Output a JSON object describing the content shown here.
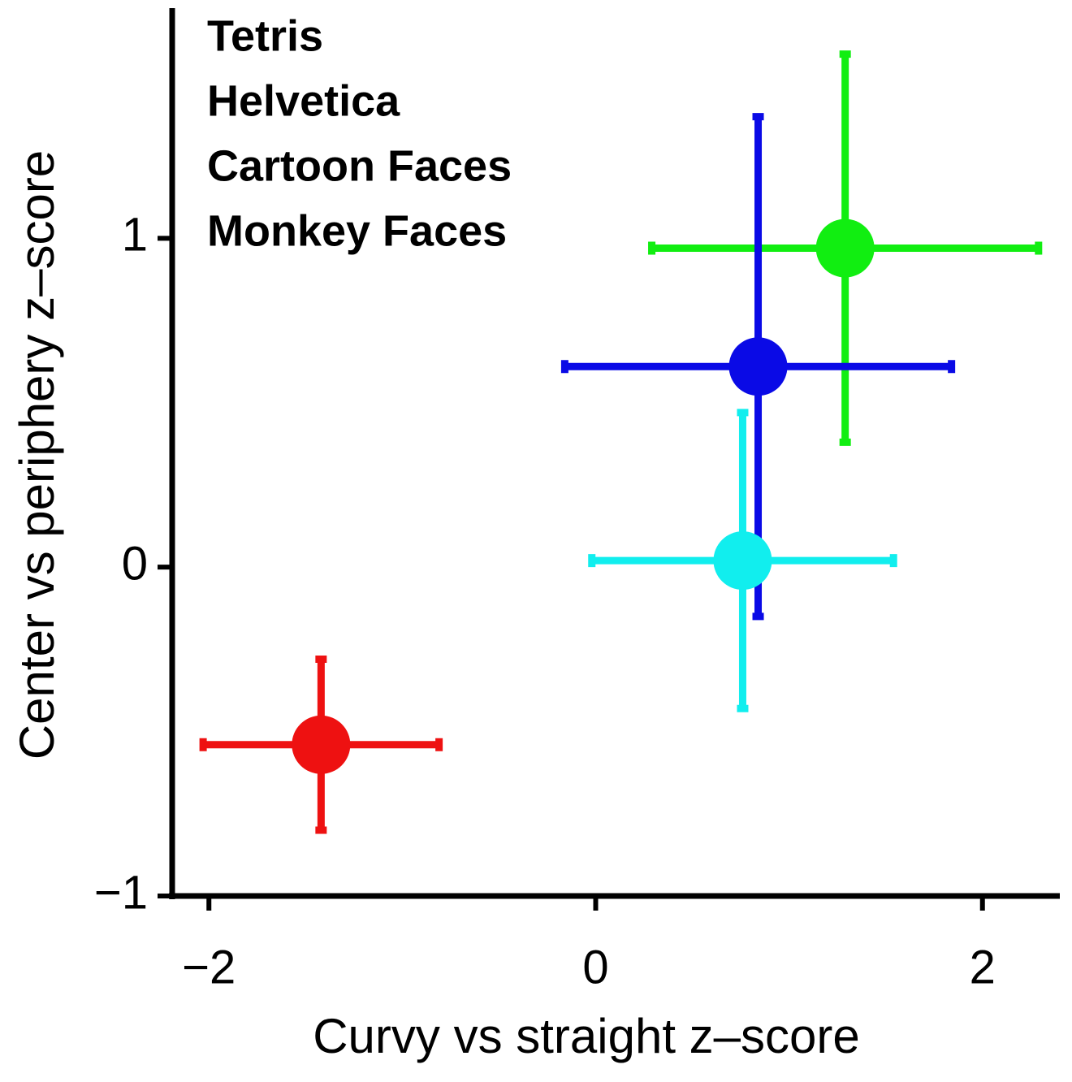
{
  "chart_data": {
    "type": "scatter",
    "xlabel": "Curvy vs straight z–score",
    "ylabel": "Center vs periphery z–score",
    "xlim": [
      -2.19,
      2.4
    ],
    "ylim": [
      -1,
      1.7
    ],
    "xticks": [
      {
        "value": -2,
        "label": "−2"
      },
      0,
      2
    ],
    "yticks": [
      {
        "value": -1,
        "label": "−1"
      },
      0,
      1
    ],
    "series": [
      {
        "name": "Tetris",
        "color": "#11ee11",
        "x": [
          1.29
        ],
        "y": [
          0.97
        ],
        "xerr": [
          1.0
        ],
        "yerr": [
          0.59
        ]
      },
      {
        "name": "Helvetica",
        "color": "#0a0ae6",
        "x": [
          0.84
        ],
        "y": [
          0.61
        ],
        "xerr": [
          1.0
        ],
        "yerr": [
          0.76
        ]
      },
      {
        "name": "Cartoon Faces",
        "color": "#11eeee",
        "x": [
          0.76
        ],
        "y": [
          0.02
        ],
        "xerr": [
          0.78
        ],
        "yerr": [
          0.45
        ]
      },
      {
        "name": "Monkey Faces",
        "color": "#ee1111",
        "x": [
          -1.42
        ],
        "y": [
          -0.54
        ],
        "xerr": [
          0.61
        ],
        "yerr": [
          0.26
        ]
      }
    ]
  }
}
